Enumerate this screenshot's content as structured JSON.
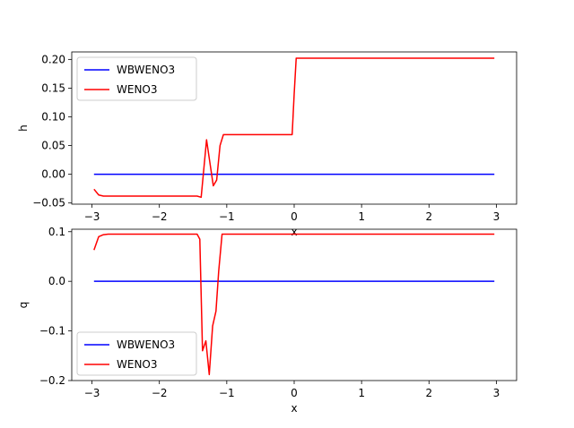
{
  "chart_data": [
    {
      "type": "line",
      "title": "",
      "xlabel": "x",
      "ylabel": "h",
      "xlim": [
        -3.3,
        3.3
      ],
      "ylim": [
        -0.052,
        0.213
      ],
      "xticks": [
        -3,
        -2,
        -1,
        0,
        1,
        2,
        3
      ],
      "xtick_labels": [
        "−3",
        "−2",
        "−1",
        "0",
        "1",
        "2",
        "3"
      ],
      "yticks": [
        -0.05,
        0.0,
        0.05,
        0.1,
        0.15,
        0.2
      ],
      "ytick_labels": [
        "−0.05",
        "0.00",
        "0.05",
        "0.10",
        "0.15",
        "0.20"
      ],
      "grid": false,
      "legend": "upper-left",
      "series": [
        {
          "name": "WBWENO3",
          "color": "#0000ff",
          "x": [
            -2.97,
            2.97
          ],
          "y": [
            0.0,
            0.0
          ]
        },
        {
          "name": "WENO3",
          "color": "#ff0000",
          "x": [
            -2.97,
            -2.9,
            -2.83,
            -2.76,
            -1.5,
            -1.44,
            -1.38,
            -1.3,
            -1.25,
            -1.2,
            -1.15,
            -1.1,
            -1.05,
            -1.0,
            -0.5,
            -0.03,
            0.0,
            0.03,
            0.5,
            1.0,
            2.0,
            2.97
          ],
          "y": [
            -0.026,
            -0.036,
            -0.038,
            -0.038,
            -0.038,
            -0.038,
            -0.04,
            0.06,
            0.02,
            -0.02,
            -0.01,
            0.05,
            0.069,
            0.069,
            0.069,
            0.069,
            0.14,
            0.202,
            0.202,
            0.202,
            0.202,
            0.202
          ]
        }
      ]
    },
    {
      "type": "line",
      "title": "",
      "xlabel": "x",
      "ylabel": "q",
      "xlim": [
        -3.3,
        3.3
      ],
      "ylim": [
        -0.2,
        0.105
      ],
      "xticks": [
        -3,
        -2,
        -1,
        0,
        1,
        2,
        3
      ],
      "xtick_labels": [
        "−3",
        "−2",
        "−1",
        "0",
        "1",
        "2",
        "3"
      ],
      "yticks": [
        -0.2,
        -0.1,
        0.0,
        0.1
      ],
      "ytick_labels": [
        "−0.2",
        "−0.1",
        "0.0",
        "0.1"
      ],
      "grid": false,
      "legend": "lower-left",
      "series": [
        {
          "name": "WBWENO3",
          "color": "#0000ff",
          "x": [
            -2.97,
            2.97
          ],
          "y": [
            0.0,
            0.0
          ]
        },
        {
          "name": "WENO3",
          "color": "#ff0000",
          "x": [
            -2.97,
            -2.9,
            -2.83,
            -2.76,
            -1.5,
            -1.44,
            -1.4,
            -1.36,
            -1.31,
            -1.26,
            -1.21,
            -1.16,
            -1.12,
            -1.07,
            -1.0,
            0.0,
            1.0,
            2.0,
            2.97
          ],
          "y": [
            0.063,
            0.09,
            0.094,
            0.095,
            0.095,
            0.095,
            0.085,
            -0.14,
            -0.12,
            -0.188,
            -0.09,
            -0.06,
            0.02,
            0.095,
            0.095,
            0.095,
            0.095,
            0.095,
            0.095
          ]
        }
      ]
    }
  ]
}
